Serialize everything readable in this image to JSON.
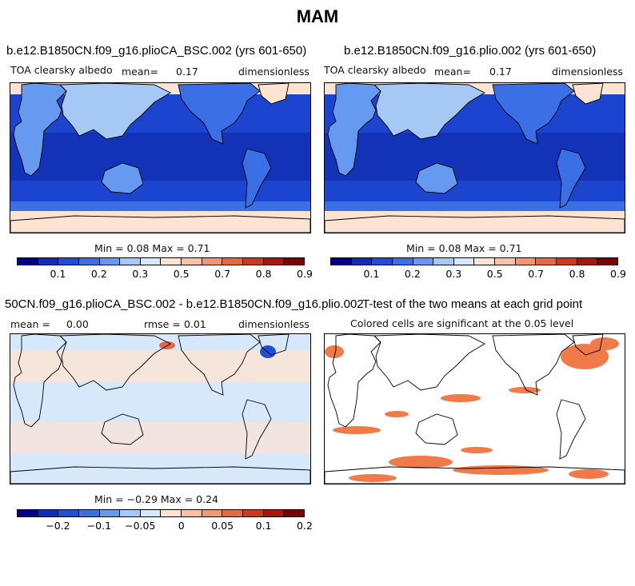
{
  "main_title": "MAM",
  "panels": [
    {
      "title": "b.e12.B1850CN.f09_g16.plioCA_BSC.002 (yrs 601-650)",
      "variable": "TOA clearsky albedo",
      "mean_label": "mean=",
      "mean_value": "0.17",
      "units": "dimensionless",
      "minmax_text": "Min =   0.08 Max =   0.71"
    },
    {
      "title": "b.e12.B1850CN.f09_g16.plio.002 (yrs 601-650)",
      "variable": "TOA clearsky albedo",
      "mean_label": "mean=",
      "mean_value": "0.17",
      "units": "dimensionless",
      "minmax_text": "Min =   0.08 Max =   0.71"
    },
    {
      "title": "50CN.f09_g16.plioCA_BSC.002 - b.e12.B1850CN.f09_g16.plio.002",
      "mean_label": "mean =",
      "mean_value": "0.00",
      "rmse_label": "rmse =",
      "rmse_value": "0.01",
      "units": "dimensionless",
      "minmax_text": "Min =  −0.29 Max =   0.24"
    },
    {
      "title": "T-test of the two means at each grid point",
      "subtitle": "Colored cells are significant at the 0.05 level"
    }
  ],
  "colorbars": {
    "absolute": {
      "colors": [
        "#00008b",
        "#0a2fb4",
        "#1f4ed6",
        "#3a6fe6",
        "#6699f0",
        "#a6c8f5",
        "#d8e8fb",
        "#fde3d2",
        "#f9c2a4",
        "#f29770",
        "#e6683f",
        "#cc3a1c",
        "#a8170c",
        "#7d0000"
      ],
      "ticks": [
        "0.1",
        "0.2",
        "0.3",
        "0.5",
        "0.7",
        "0.8",
        "0.9"
      ]
    },
    "difference": {
      "colors": [
        "#00008b",
        "#0a2fb4",
        "#1f4ed6",
        "#3a6fe6",
        "#6699f0",
        "#a6c8f5",
        "#d8e8fb",
        "#fde3d2",
        "#f9c2a4",
        "#f29770",
        "#e6683f",
        "#cc3a1c",
        "#a8170c",
        "#7d0000"
      ],
      "ticks": [
        "−0.2",
        "−0.1",
        "−0.05",
        "0",
        "0.05",
        "0.1",
        "0.2"
      ]
    }
  },
  "chart_data": [
    {
      "type": "heatmap",
      "title": "b.e12.B1850CN.f09_g16.plioCA_BSC.002 (yrs 601-650)",
      "variable": "TOA clearsky albedo",
      "mean": 0.17,
      "min": 0.08,
      "max": 0.71,
      "units": "dimensionless",
      "colorbar_ticks": [
        0.1,
        0.2,
        0.3,
        0.5,
        0.7,
        0.8,
        0.9
      ]
    },
    {
      "type": "heatmap",
      "title": "b.e12.B1850CN.f09_g16.plio.002 (yrs 601-650)",
      "variable": "TOA clearsky albedo",
      "mean": 0.17,
      "min": 0.08,
      "max": 0.71,
      "units": "dimensionless",
      "colorbar_ticks": [
        0.1,
        0.2,
        0.3,
        0.5,
        0.7,
        0.8,
        0.9
      ]
    },
    {
      "type": "heatmap",
      "title": "50CN.f09_g16.plioCA_BSC.002 - b.e12.B1850CN.f09_g16.plio.002",
      "mean": 0.0,
      "rmse": 0.01,
      "min": -0.29,
      "max": 0.24,
      "units": "dimensionless",
      "colorbar_ticks": [
        -0.2,
        -0.1,
        -0.05,
        0,
        0.05,
        0.1,
        0.2
      ]
    },
    {
      "type": "heatmap",
      "title": "T-test of the two means at each grid point",
      "annotation": "Colored cells are significant at the 0.05 level",
      "significance_level": 0.05
    }
  ]
}
